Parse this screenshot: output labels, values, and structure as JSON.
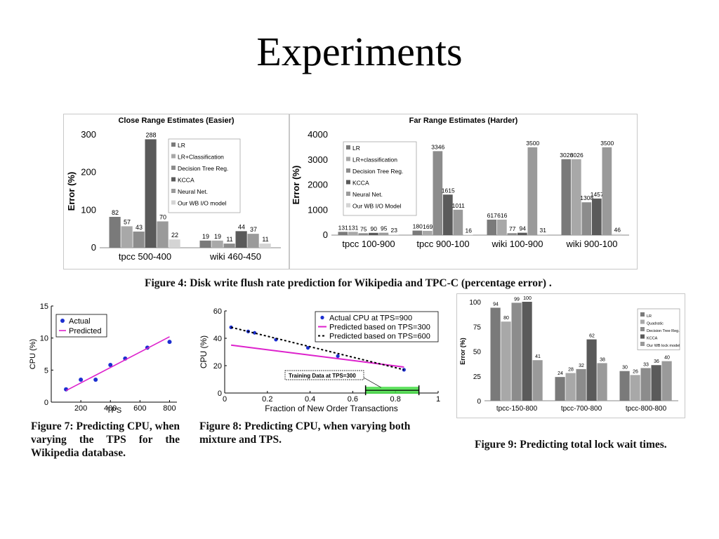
{
  "slide": {
    "title": "Experiments"
  },
  "captions": {
    "fig4": "Figure 4: Disk write flush rate prediction for Wikipedia and TPC-C (percentage error) .",
    "fig7": "Figure 7:   Predicting CPU, when varying the TPS for the Wikipedia database.",
    "fig8": "Figure 8: Predicting CPU, when varying both mixture and TPS.",
    "fig9": "Figure 9: Predicting total lock wait times."
  },
  "colors": [
    "#7a7a7a",
    "#a8a8a8",
    "#8c8c8c",
    "#5a5a5a",
    "#9a9a9a",
    "#d4d4d4"
  ],
  "chart_data": [
    {
      "id": "close",
      "type": "bar",
      "title": "Close Range Estimates (Easier)",
      "ylabel": "Error (%)",
      "ylim": [
        0,
        300
      ],
      "yticks": [
        "0",
        "100",
        "200",
        "300"
      ],
      "categories": [
        "tpcc 500-400",
        "wiki 460-450"
      ],
      "series": [
        {
          "name": "LR",
          "values": [
            82,
            19
          ]
        },
        {
          "name": "LR+Classification",
          "values": [
            57,
            19
          ]
        },
        {
          "name": "Decision Tree Reg.",
          "values": [
            43,
            11
          ]
        },
        {
          "name": "KCCA",
          "values": [
            288,
            44
          ]
        },
        {
          "name": "Neural Net.",
          "values": [
            70,
            37
          ]
        },
        {
          "name": "Our WB I/O model",
          "values": [
            22,
            11
          ]
        }
      ],
      "legend": "top-right",
      "grid": false
    },
    {
      "id": "far",
      "type": "bar",
      "title": "Far Range Estimates (Harder)",
      "ylabel": "Error (%)",
      "ylim": [
        0,
        4000
      ],
      "yticks": [
        "0",
        "1000",
        "2000",
        "3000",
        "4000"
      ],
      "categories": [
        "tpcc 100-900",
        "tpcc 900-100",
        "wiki 100-900",
        "wiki 900-100"
      ],
      "series": [
        {
          "name": "LR",
          "values": [
            131,
            180,
            617,
            3026
          ]
        },
        {
          "name": "LR+classification",
          "values": [
            131,
            169,
            616,
            3026
          ]
        },
        {
          "name": "Decision Tree Reg.",
          "values": [
            75,
            3346,
            77,
            1308
          ]
        },
        {
          "name": "KCCA",
          "values": [
            90,
            1615,
            94,
            1457
          ]
        },
        {
          "name": "Neural Net.",
          "values": [
            95,
            1011,
            3500,
            3500
          ]
        },
        {
          "name": "Our WB I/O Model",
          "values": [
            23,
            16,
            31,
            46
          ]
        }
      ],
      "legend": "top-left",
      "grid": false
    },
    {
      "id": "lock",
      "type": "bar",
      "title": "",
      "ylabel": "Error (%)",
      "ylim": [
        0,
        100
      ],
      "yticks": [
        "0",
        "25",
        "50",
        "75",
        "100"
      ],
      "categories": [
        "tpcc-150-800",
        "tpcc-700-800",
        "tpcc-800-800"
      ],
      "series": [
        {
          "name": "LR",
          "values": [
            94,
            24,
            30
          ]
        },
        {
          "name": "Quadratic",
          "values": [
            80,
            28,
            26
          ]
        },
        {
          "name": "Decision Tree Reg.",
          "values": [
            99,
            32,
            33
          ]
        },
        {
          "name": "KCCA",
          "values": [
            100,
            62,
            36
          ]
        },
        {
          "name": "Our WB lock model",
          "values": [
            41,
            38,
            40
          ]
        }
      ],
      "value_labels": [
        [
          "94",
          "80",
          "99",
          "100",
          "41"
        ],
        [
          "24",
          "28",
          "32",
          "62",
          "38"
        ],
        [
          "30",
          "26",
          "33",
          "36",
          "40"
        ]
      ],
      "legend": "top-right",
      "grid": false
    },
    {
      "id": "cpu-tps",
      "type": "scatter",
      "title": "",
      "xlabel": "TPS",
      "ylabel": "CPU (%)",
      "xlim": [
        0,
        850
      ],
      "ylim": [
        0,
        15
      ],
      "xticks": [
        200,
        400,
        600,
        800
      ],
      "yticks": [
        0,
        5,
        10,
        15
      ],
      "series": [
        {
          "name": "Actual",
          "type": "scatter",
          "x": [
            100,
            200,
            300,
            400,
            500,
            650,
            800
          ],
          "y": [
            2.0,
            3.5,
            3.5,
            5.8,
            6.8,
            8.5,
            9.4
          ]
        },
        {
          "name": "Predicted",
          "type": "line",
          "x": [
            100,
            800
          ],
          "y": [
            1.8,
            10.2
          ]
        }
      ],
      "legend": "top-left",
      "grid": false
    },
    {
      "id": "cpu-mix",
      "type": "scatter",
      "title": "",
      "xlabel": "Fraction of New Order Transactions",
      "ylabel": "CPU (%)",
      "xlim": [
        0,
        1
      ],
      "ylim": [
        0,
        60
      ],
      "xticks": [
        "0",
        "0.2",
        "0.4",
        "0.6",
        "0.8",
        "1"
      ],
      "yticks": [
        "0",
        "20",
        "40",
        "60"
      ],
      "series": [
        {
          "name": "Actual CPU at TPS=900",
          "type": "scatter",
          "x": [
            0.03,
            0.11,
            0.14,
            0.24,
            0.39,
            0.53,
            0.84
          ],
          "y": [
            48,
            45,
            44,
            39,
            33,
            27,
            17
          ]
        },
        {
          "name": "Predicted based on TPS=300",
          "type": "line",
          "x": [
            0.03,
            0.84
          ],
          "y": [
            35,
            19
          ]
        },
        {
          "name": "Predicted based on TPS=600",
          "type": "line",
          "x": [
            0.03,
            0.84
          ],
          "y": [
            48,
            17
          ]
        }
      ],
      "annotation": "Training Data at TPS=300",
      "training_range": [
        0.66,
        0.91
      ],
      "legend": "top-right",
      "grid": false
    }
  ]
}
